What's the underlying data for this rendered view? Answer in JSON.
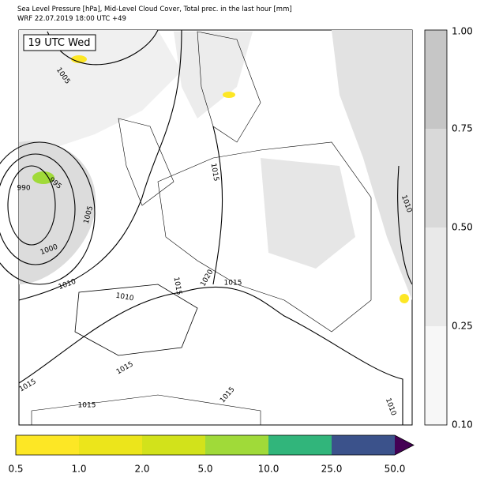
{
  "header": {
    "title_lines": [
      "Sea Level Pressure [hPa], Mid-Level Cloud Cover, Total prec. in the last hour [mm]",
      "WRF 22.07.2019 18:00 UTC +49"
    ]
  },
  "map": {
    "time_label": "19 UTC Wed",
    "isobar_labels": [
      "1005",
      "990",
      "995",
      "1005",
      "1000",
      "1010",
      "1015",
      "1010",
      "1015",
      "1020",
      "1015",
      "1010",
      "1015",
      "1015",
      "1015",
      "1015",
      "1010"
    ]
  },
  "cloud_colorbar": {
    "ticks": [
      "0.10",
      "0.25",
      "0.50",
      "0.75",
      "1.00"
    ]
  },
  "precip_colorbar": {
    "ticks": [
      "0.5",
      "1.0",
      "2.0",
      "5.0",
      "10.0",
      "25.0",
      "50.0"
    ]
  }
}
